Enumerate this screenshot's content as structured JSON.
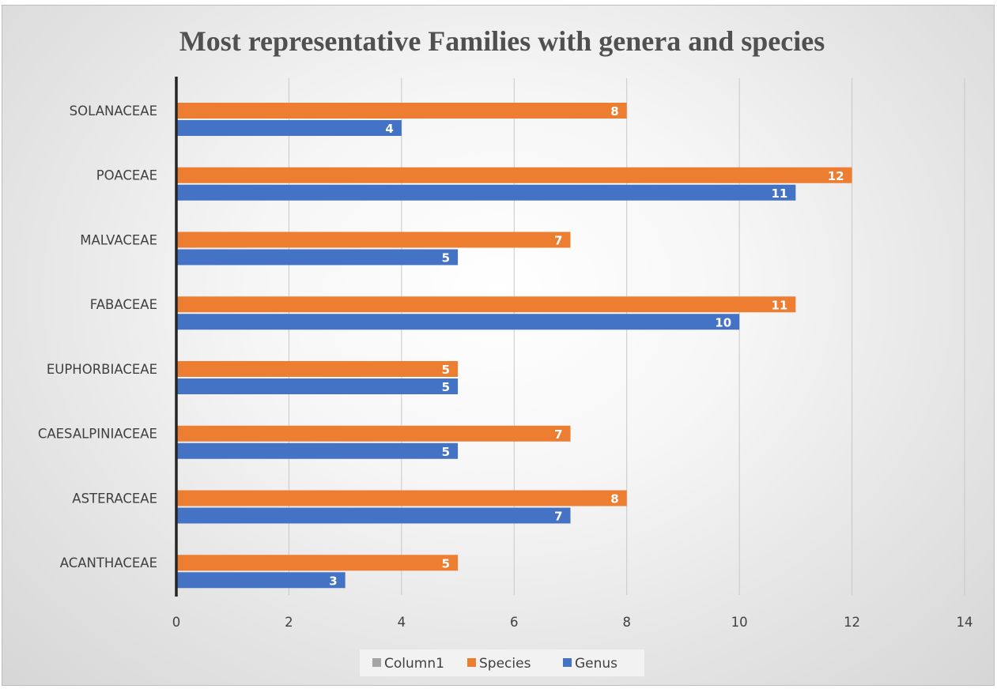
{
  "chart_data": {
    "type": "bar",
    "orientation": "horizontal",
    "title": "Most representative Families with genera and species",
    "categories": [
      "SOLANACEAE",
      "POACEAE",
      "MALVACEAE",
      "FABACEAE",
      "EUPHORBIACEAE",
      "CAESALPINIACEAE",
      "ASTERACEAE",
      "ACANTHACEAE"
    ],
    "series": [
      {
        "name": "Column1",
        "color": "#a5a5a5",
        "values": [
          null,
          null,
          null,
          null,
          null,
          null,
          null,
          null
        ]
      },
      {
        "name": "Species",
        "color": "#ed7d31",
        "values": [
          8,
          12,
          7,
          11,
          5,
          7,
          8,
          5
        ]
      },
      {
        "name": "Genus",
        "color": "#4472c4",
        "values": [
          4,
          11,
          5,
          10,
          5,
          5,
          7,
          3
        ]
      }
    ],
    "xlim": [
      0,
      14
    ],
    "xticks": [
      "0",
      "2",
      "4",
      "6",
      "8",
      "10",
      "12",
      "14"
    ],
    "grid": true,
    "data_labels": true,
    "legend_position": "bottom"
  }
}
